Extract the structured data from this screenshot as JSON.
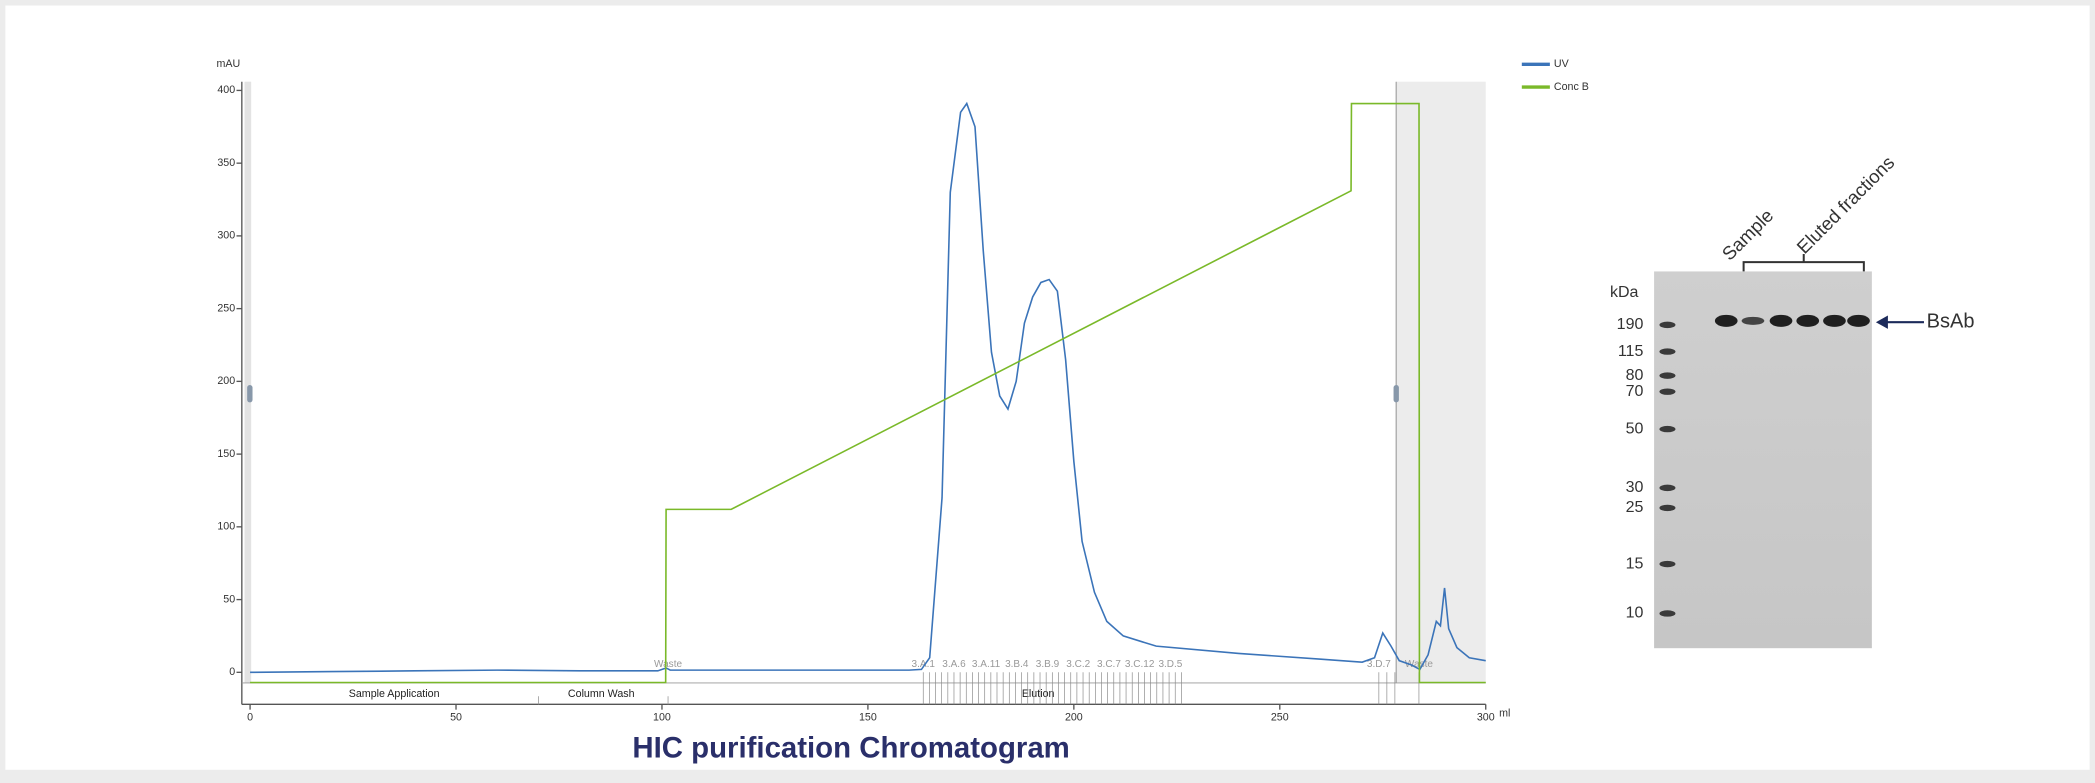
{
  "chart_data": {
    "type": "line",
    "title": "HIC purification Chromatogram",
    "y_label": "mAU",
    "x_label": "ml",
    "xlim": [
      -2,
      300
    ],
    "xticks": [
      0,
      50,
      100,
      150,
      200,
      250,
      300
    ],
    "ylim": [
      -22,
      406
    ],
    "yticks": [
      0,
      50,
      100,
      150,
      200,
      250,
      300,
      350,
      400
    ],
    "legend": "top-right",
    "series": [
      {
        "name": "UV",
        "color": "#3b74b9",
        "x": [
          0,
          20,
          40,
          60,
          80,
          99,
          101,
          102,
          120,
          140,
          160,
          163,
          165,
          168,
          170,
          172.5,
          174,
          176,
          178,
          180,
          182,
          184,
          186,
          188,
          190,
          192,
          194,
          196,
          198,
          200,
          202,
          205,
          208,
          212,
          220,
          240,
          260,
          270,
          273,
          275,
          277,
          279,
          282,
          284,
          286,
          288,
          289,
          290,
          291,
          293,
          296,
          300
        ],
        "values": [
          0,
          0.5,
          1,
          1.5,
          1,
          1,
          3,
          1.5,
          1.5,
          1.5,
          1.5,
          2,
          10,
          120,
          330,
          385,
          391,
          375,
          290,
          220,
          190,
          181,
          200,
          240,
          258,
          268,
          270,
          262,
          215,
          145,
          90,
          55,
          35,
          25,
          18,
          13,
          9,
          7,
          10,
          27,
          18,
          8,
          5,
          2,
          12,
          35,
          32,
          58,
          30,
          17,
          10,
          8
        ]
      },
      {
        "name": "Conc B",
        "color": "#7ab929",
        "x": [
          0,
          100.9,
          101,
          116.8,
          267.3,
          267.4,
          283.8,
          283.9,
          300
        ],
        "values": [
          -7,
          -7,
          112,
          112,
          331,
          391,
          391,
          -7,
          -7
        ]
      }
    ],
    "phases": [
      "Sample Application",
      "Column Wash",
      "Elution"
    ],
    "fractions": [
      "Waste",
      "3.A.1",
      "3.A.6",
      "3.A.11",
      "3.B.4",
      "3.B.9",
      "3.C.2",
      "3.C.7",
      "3.C.12",
      "3.D.5",
      "3.D.7",
      "Waste"
    ]
  },
  "gel": {
    "unit_label": "kDa",
    "markers": [
      "190",
      "115",
      "80",
      "70",
      "50",
      "30",
      "25",
      "15",
      "10"
    ],
    "lane_labels": [
      "Sample",
      "Eluted fractions"
    ],
    "band_label": "BsAb"
  }
}
